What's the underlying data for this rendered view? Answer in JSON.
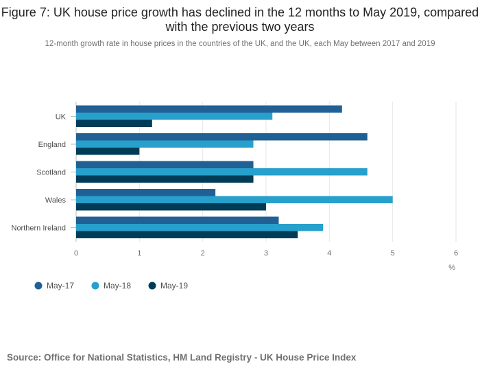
{
  "title": "Figure 7: UK house price growth has declined in the 12 months to May 2019, compared with the previous two years",
  "subtitle": "12-month growth rate in house prices in the countries of the UK, and the UK, each May between 2017 and 2019",
  "source": "Source: Office for National Statistics, HM Land Registry - UK House Price Index",
  "chart_data": {
    "type": "bar",
    "orientation": "horizontal",
    "categories": [
      "UK",
      "England",
      "Scotland",
      "Wales",
      "Northern Ireland"
    ],
    "series": [
      {
        "name": "May-17",
        "color": "#206095",
        "values": [
          4.2,
          4.6,
          2.8,
          2.2,
          3.2
        ]
      },
      {
        "name": "May-18",
        "color": "#27a0cc",
        "values": [
          3.1,
          2.8,
          4.6,
          5.0,
          3.9
        ]
      },
      {
        "name": "May-19",
        "color": "#003c57",
        "values": [
          1.2,
          1.0,
          2.8,
          3.0,
          3.5
        ]
      }
    ],
    "xlim": [
      0,
      6
    ],
    "xticks": [
      "0",
      "1",
      "2",
      "3",
      "4",
      "5",
      "6"
    ],
    "xlabel": "%",
    "grid": true,
    "legend": "bottom-left"
  }
}
